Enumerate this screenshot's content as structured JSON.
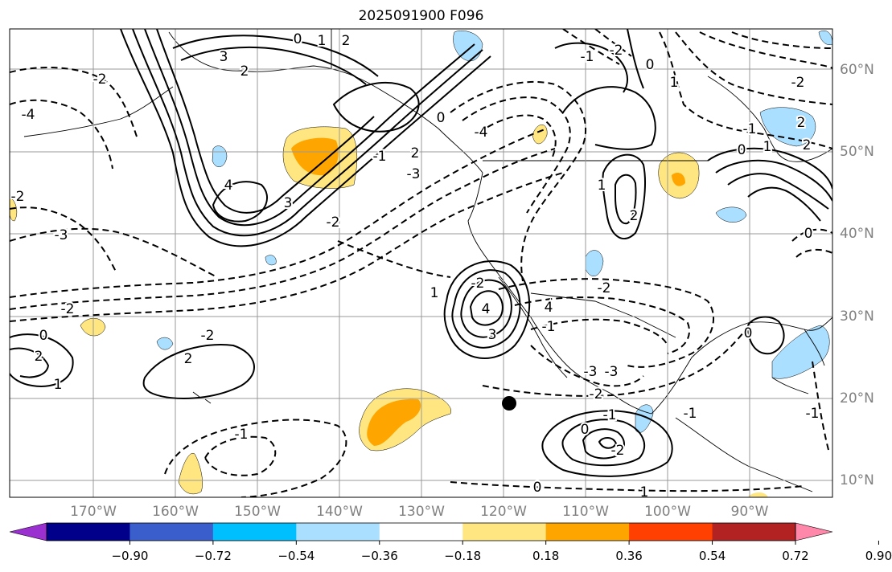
{
  "title": "2025091900 F096",
  "lat_labels": [
    "60°N",
    "50°N",
    "40°N",
    "30°N",
    "20°N",
    "10°N"
  ],
  "lon_labels": [
    "170°W",
    "160°W",
    "150°W",
    "140°W",
    "130°W",
    "120°W",
    "110°W",
    "100°W",
    "90°W"
  ],
  "colorbar": {
    "ticks": [
      "−0.90",
      "−0.72",
      "−0.54",
      "−0.36",
      "−0.18",
      "0.18",
      "0.36",
      "0.54",
      "0.72",
      "0.90"
    ],
    "colors": [
      "#9b30d0",
      "#00008b",
      "#3a5fcd",
      "#00bfff",
      "#aadfff",
      "#ffffff",
      "#ffe680",
      "#ffa500",
      "#ff4000",
      "#b22222",
      "#ff88aa"
    ]
  },
  "contour_labels": [
    "0",
    "1",
    "2",
    "-2",
    "3",
    "-4",
    "2",
    "4",
    "3",
    "-2",
    "-3",
    "-1",
    "2",
    "-2",
    "-4",
    "-3",
    "0",
    "-2",
    "0",
    "2",
    "1",
    "2",
    "-2",
    "-1",
    "1",
    "-2",
    "4",
    "3",
    "4",
    "-1",
    "-2",
    "-3",
    "-3",
    "-2",
    "-1",
    "0",
    "-2",
    "0",
    "1",
    "-1",
    "0",
    "1",
    "2",
    "-1",
    "0",
    "-2",
    "1",
    "0",
    "2",
    "1",
    "2",
    "-1",
    "0",
    "-1",
    "-2"
  ],
  "marker": {
    "lat": 19.5,
    "lon": -119
  }
}
